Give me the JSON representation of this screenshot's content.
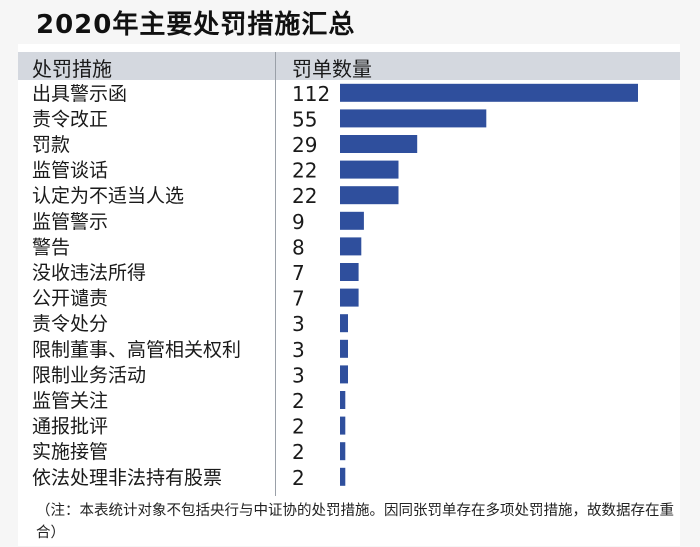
{
  "title": "2020年主要处罚措施汇总",
  "header": {
    "col1": "处罚措施",
    "col2": "罚单数量"
  },
  "note": "（注：本表统计对象不包括央行与中证协的处罚措施。因同张罚单存在多项处罚措施，故数据存在重合）",
  "colors": {
    "bar": "#2f4f9d",
    "header_bg": "#d4d8df"
  },
  "chart_data": {
    "type": "bar",
    "orientation": "horizontal",
    "categories": [
      "出具警示函",
      "责令改正",
      "罚款",
      "监管谈话",
      "认定为不适当人选",
      "监管警示",
      "警告",
      "没收违法所得",
      "公开谴责",
      "责令处分",
      "限制董事、高管相关权利",
      "限制业务活动",
      "监管关注",
      "通报批评",
      "实施接管",
      "依法处理非法持有股票"
    ],
    "values": [
      112,
      55,
      29,
      22,
      22,
      9,
      8,
      7,
      7,
      3,
      3,
      3,
      2,
      2,
      2,
      2
    ]
  }
}
